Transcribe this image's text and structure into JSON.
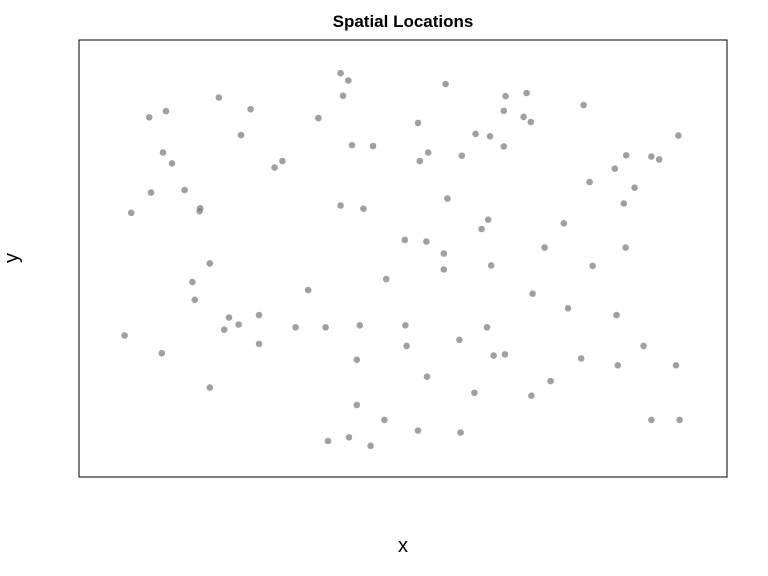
{
  "chart_data": {
    "type": "scatter",
    "title": "Spatial Locations",
    "xlabel": "x",
    "ylabel": "y",
    "xlim": [
      0,
      1
    ],
    "ylim": [
      0,
      1
    ],
    "axes_ticks": false,
    "grid": false,
    "point_color": "#808080",
    "overlap_color": "#404040",
    "points": [
      [
        0.077,
        0.849
      ],
      [
        0.105,
        0.864
      ],
      [
        0.08,
        0.663
      ],
      [
        0.047,
        0.613
      ],
      [
        0.036,
        0.31
      ],
      [
        0.1,
        0.762
      ],
      [
        0.115,
        0.735
      ],
      [
        0.098,
        0.266
      ],
      [
        0.193,
        0.898
      ],
      [
        0.23,
        0.805
      ],
      [
        0.246,
        0.869
      ],
      [
        0.162,
        0.624
      ],
      [
        0.161,
        0.617
      ],
      [
        0.178,
        0.488
      ],
      [
        0.149,
        0.442
      ],
      [
        0.153,
        0.398
      ],
      [
        0.136,
        0.669
      ],
      [
        0.178,
        0.181
      ],
      [
        0.21,
        0.354
      ],
      [
        0.202,
        0.324
      ],
      [
        0.226,
        0.337
      ],
      [
        0.26,
        0.36
      ],
      [
        0.26,
        0.289
      ],
      [
        0.286,
        0.725
      ],
      [
        0.299,
        0.741
      ],
      [
        0.321,
        0.33
      ],
      [
        0.359,
        0.847
      ],
      [
        0.342,
        0.422
      ],
      [
        0.371,
        0.33
      ],
      [
        0.396,
        0.958
      ],
      [
        0.409,
        0.94
      ],
      [
        0.4,
        0.902
      ],
      [
        0.396,
        0.631
      ],
      [
        0.434,
        0.623
      ],
      [
        0.415,
        0.78
      ],
      [
        0.428,
        0.335
      ],
      [
        0.472,
        0.449
      ],
      [
        0.423,
        0.25
      ],
      [
        0.423,
        0.138
      ],
      [
        0.375,
        0.049
      ],
      [
        0.41,
        0.058
      ],
      [
        0.446,
        0.037
      ],
      [
        0.469,
        0.101
      ],
      [
        0.503,
        0.546
      ],
      [
        0.506,
        0.284
      ],
      [
        0.504,
        0.335
      ],
      [
        0.525,
        0.835
      ],
      [
        0.528,
        0.741
      ],
      [
        0.542,
        0.762
      ],
      [
        0.539,
        0.542
      ],
      [
        0.54,
        0.208
      ],
      [
        0.525,
        0.075
      ],
      [
        0.571,
        0.931
      ],
      [
        0.574,
        0.648
      ],
      [
        0.568,
        0.512
      ],
      [
        0.568,
        0.473
      ],
      [
        0.594,
        0.299
      ],
      [
        0.596,
        0.07
      ],
      [
        0.598,
        0.754
      ],
      [
        0.621,
        0.808
      ],
      [
        0.645,
        0.802
      ],
      [
        0.631,
        0.573
      ],
      [
        0.642,
        0.596
      ],
      [
        0.647,
        0.483
      ],
      [
        0.619,
        0.168
      ],
      [
        0.64,
        0.33
      ],
      [
        0.651,
        0.26
      ],
      [
        0.668,
        0.777
      ],
      [
        0.67,
        0.263
      ],
      [
        0.668,
        0.865
      ],
      [
        0.671,
        0.901
      ],
      [
        0.706,
        0.909
      ],
      [
        0.701,
        0.85
      ],
      [
        0.713,
        0.837
      ],
      [
        0.716,
        0.413
      ],
      [
        0.714,
        0.161
      ],
      [
        0.736,
        0.527
      ],
      [
        0.746,
        0.197
      ],
      [
        0.768,
        0.587
      ],
      [
        0.775,
        0.377
      ],
      [
        0.797,
        0.253
      ],
      [
        0.801,
        0.879
      ],
      [
        0.811,
        0.689
      ],
      [
        0.816,
        0.482
      ],
      [
        0.853,
        0.722
      ],
      [
        0.872,
        0.755
      ],
      [
        0.868,
        0.636
      ],
      [
        0.871,
        0.527
      ],
      [
        0.886,
        0.675
      ],
      [
        0.856,
        0.36
      ],
      [
        0.858,
        0.236
      ],
      [
        0.901,
        0.284
      ],
      [
        0.914,
        0.752
      ],
      [
        0.927,
        0.745
      ],
      [
        0.959,
        0.804
      ],
      [
        0.955,
        0.236
      ],
      [
        0.914,
        0.101
      ],
      [
        0.961,
        0.101
      ],
      [
        0.45,
        0.778
      ]
    ]
  }
}
